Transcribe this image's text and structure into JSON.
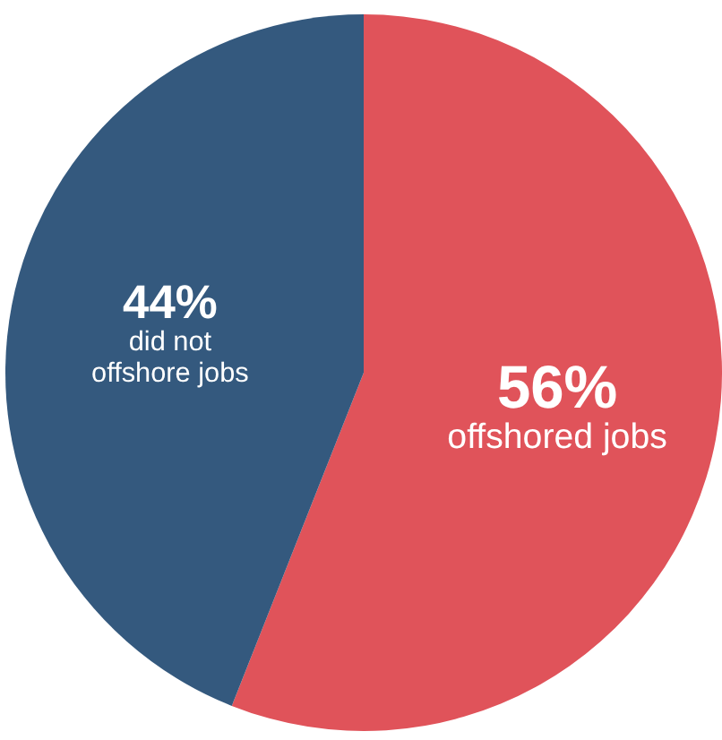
{
  "chart_data": {
    "type": "pie",
    "categories": [
      "offshored jobs",
      "did not offshore jobs"
    ],
    "values": [
      56,
      44
    ],
    "value_labels": [
      "56%",
      "44%"
    ],
    "colors": [
      "#e0535a",
      "#34597e"
    ]
  }
}
